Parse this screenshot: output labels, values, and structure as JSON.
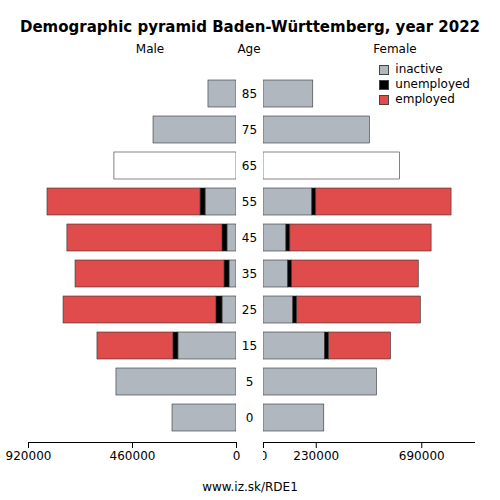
{
  "chart_data": {
    "type": "bar",
    "title": "Demographic pyramid Baden-Württemberg, year 2022",
    "orientation": "horizontal",
    "stacked": true,
    "y_label": "Age",
    "categories": [
      0,
      5,
      15,
      25,
      35,
      45,
      55,
      65,
      75,
      85
    ],
    "legend": "top-right",
    "caption": "www.iz.sk/RDE1",
    "panels": [
      {
        "title": "Male",
        "xlim": [
          920000,
          0
        ],
        "xticks": [
          920000,
          460000,
          0
        ],
        "series": [
          {
            "name": "inactive",
            "color": "#b0b7bf",
            "colors": [
              "#b0b7bf",
              "#b0b7bf",
              "#b0b7bf",
              "#b0b7bf",
              "#b0b7bf",
              "#b0b7bf",
              "#b0b7bf",
              "#ffffff",
              "#b0b7bf",
              "#b0b7bf"
            ],
            "values": [
              283000,
              531000,
              257000,
              62000,
              31000,
              40000,
              137000,
              540000,
              367000,
              124000
            ]
          },
          {
            "name": "unemployed",
            "color": "#000000",
            "values": [
              null,
              null,
              22000,
              27000,
              22000,
              22000,
              22000,
              null,
              null,
              null
            ]
          },
          {
            "name": "employed",
            "color": "#e04b4b",
            "values": [
              null,
              null,
              336000,
              676000,
              659000,
              686000,
              677000,
              null,
              null,
              null
            ]
          }
        ]
      },
      {
        "title": "Female",
        "xlim": [
          0,
          920000
        ],
        "xticks": [
          0,
          230000,
          690000
        ],
        "series": [
          {
            "name": "inactive",
            "color": "#b0b7bf",
            "colors": [
              "#b0b7bf",
              "#b0b7bf",
              "#b0b7bf",
              "#b0b7bf",
              "#b0b7bf",
              "#b0b7bf",
              "#b0b7bf",
              "#ffffff",
              "#b0b7bf",
              "#b0b7bf"
            ],
            "values": [
              265000,
              495000,
              269000,
              130000,
              108000,
              100000,
              213000,
              595000,
              464000,
              217000
            ]
          },
          {
            "name": "unemployed",
            "color": "#000000",
            "values": [
              null,
              null,
              17000,
              17000,
              17000,
              17000,
              17000,
              null,
              null,
              null
            ]
          },
          {
            "name": "employed",
            "color": "#e04b4b",
            "values": [
              null,
              null,
              270000,
              539000,
              552000,
              616000,
              590000,
              null,
              null,
              null
            ]
          }
        ]
      }
    ]
  }
}
